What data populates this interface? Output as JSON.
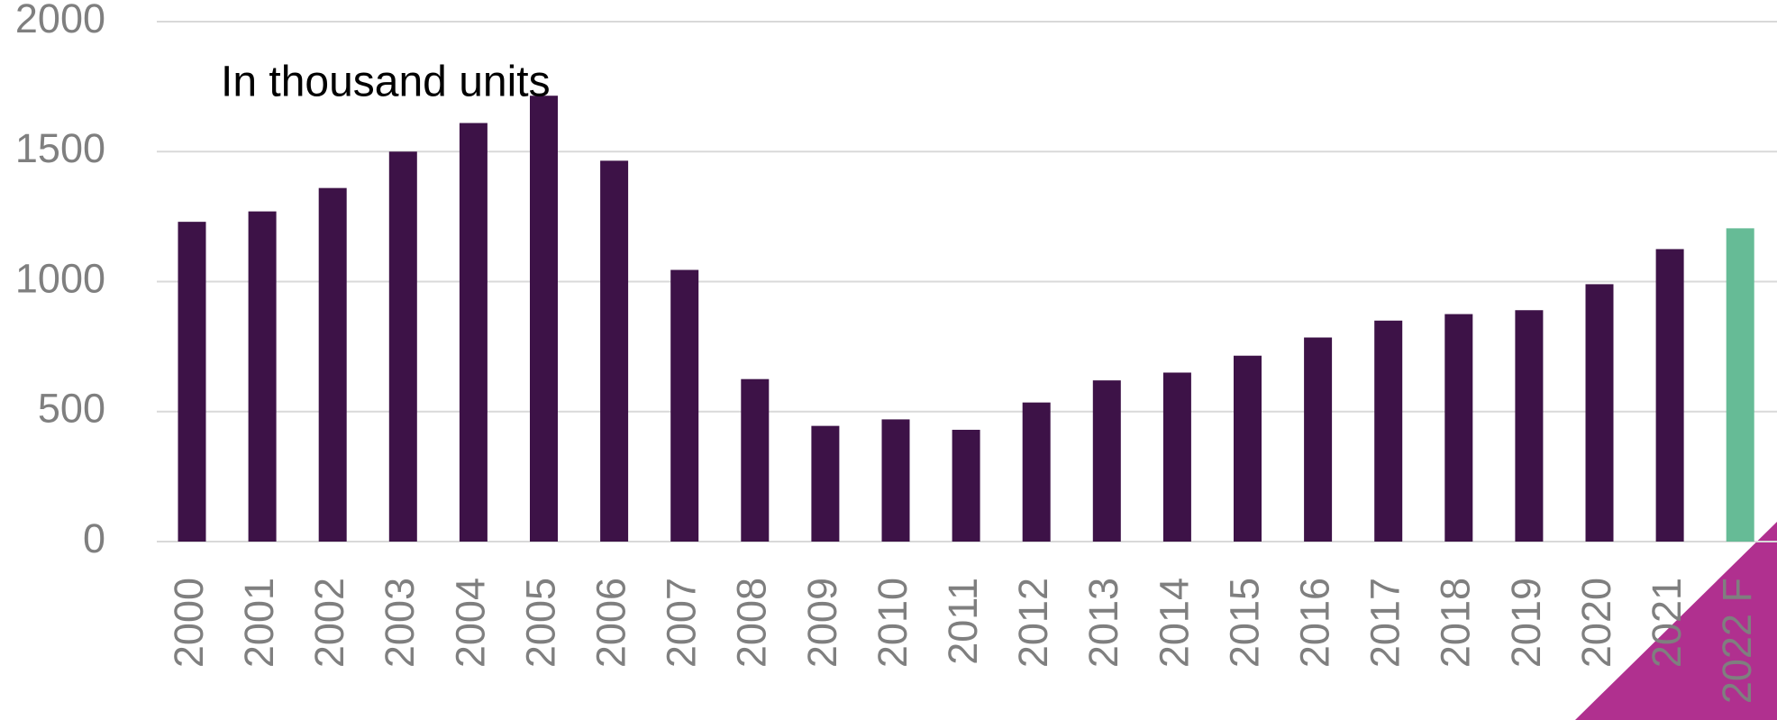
{
  "chart_data": {
    "type": "bar",
    "annotation": "In thousand units",
    "categories": [
      "2000",
      "2001",
      "2002",
      "2003",
      "2004",
      "2005",
      "2006",
      "2007",
      "2008",
      "2009",
      "2010",
      "2011",
      "2012",
      "2013",
      "2014",
      "2015",
      "2016",
      "2017",
      "2018",
      "2019",
      "2020",
      "2021",
      "2022 F"
    ],
    "values": [
      1230,
      1270,
      1360,
      1500,
      1610,
      1715,
      1465,
      1045,
      625,
      445,
      470,
      430,
      535,
      620,
      650,
      715,
      785,
      850,
      875,
      890,
      990,
      1125,
      1205
    ],
    "colors": [
      "#3d1247",
      "#3d1247",
      "#3d1247",
      "#3d1247",
      "#3d1247",
      "#3d1247",
      "#3d1247",
      "#3d1247",
      "#3d1247",
      "#3d1247",
      "#3d1247",
      "#3d1247",
      "#3d1247",
      "#3d1247",
      "#3d1247",
      "#3d1247",
      "#3d1247",
      "#3d1247",
      "#3d1247",
      "#3d1247",
      "#3d1247",
      "#3d1247",
      "#66bb96"
    ],
    "ylim": [
      0,
      2000
    ],
    "yticks": [
      0,
      500,
      1000,
      1500,
      2000
    ],
    "grid": true
  }
}
